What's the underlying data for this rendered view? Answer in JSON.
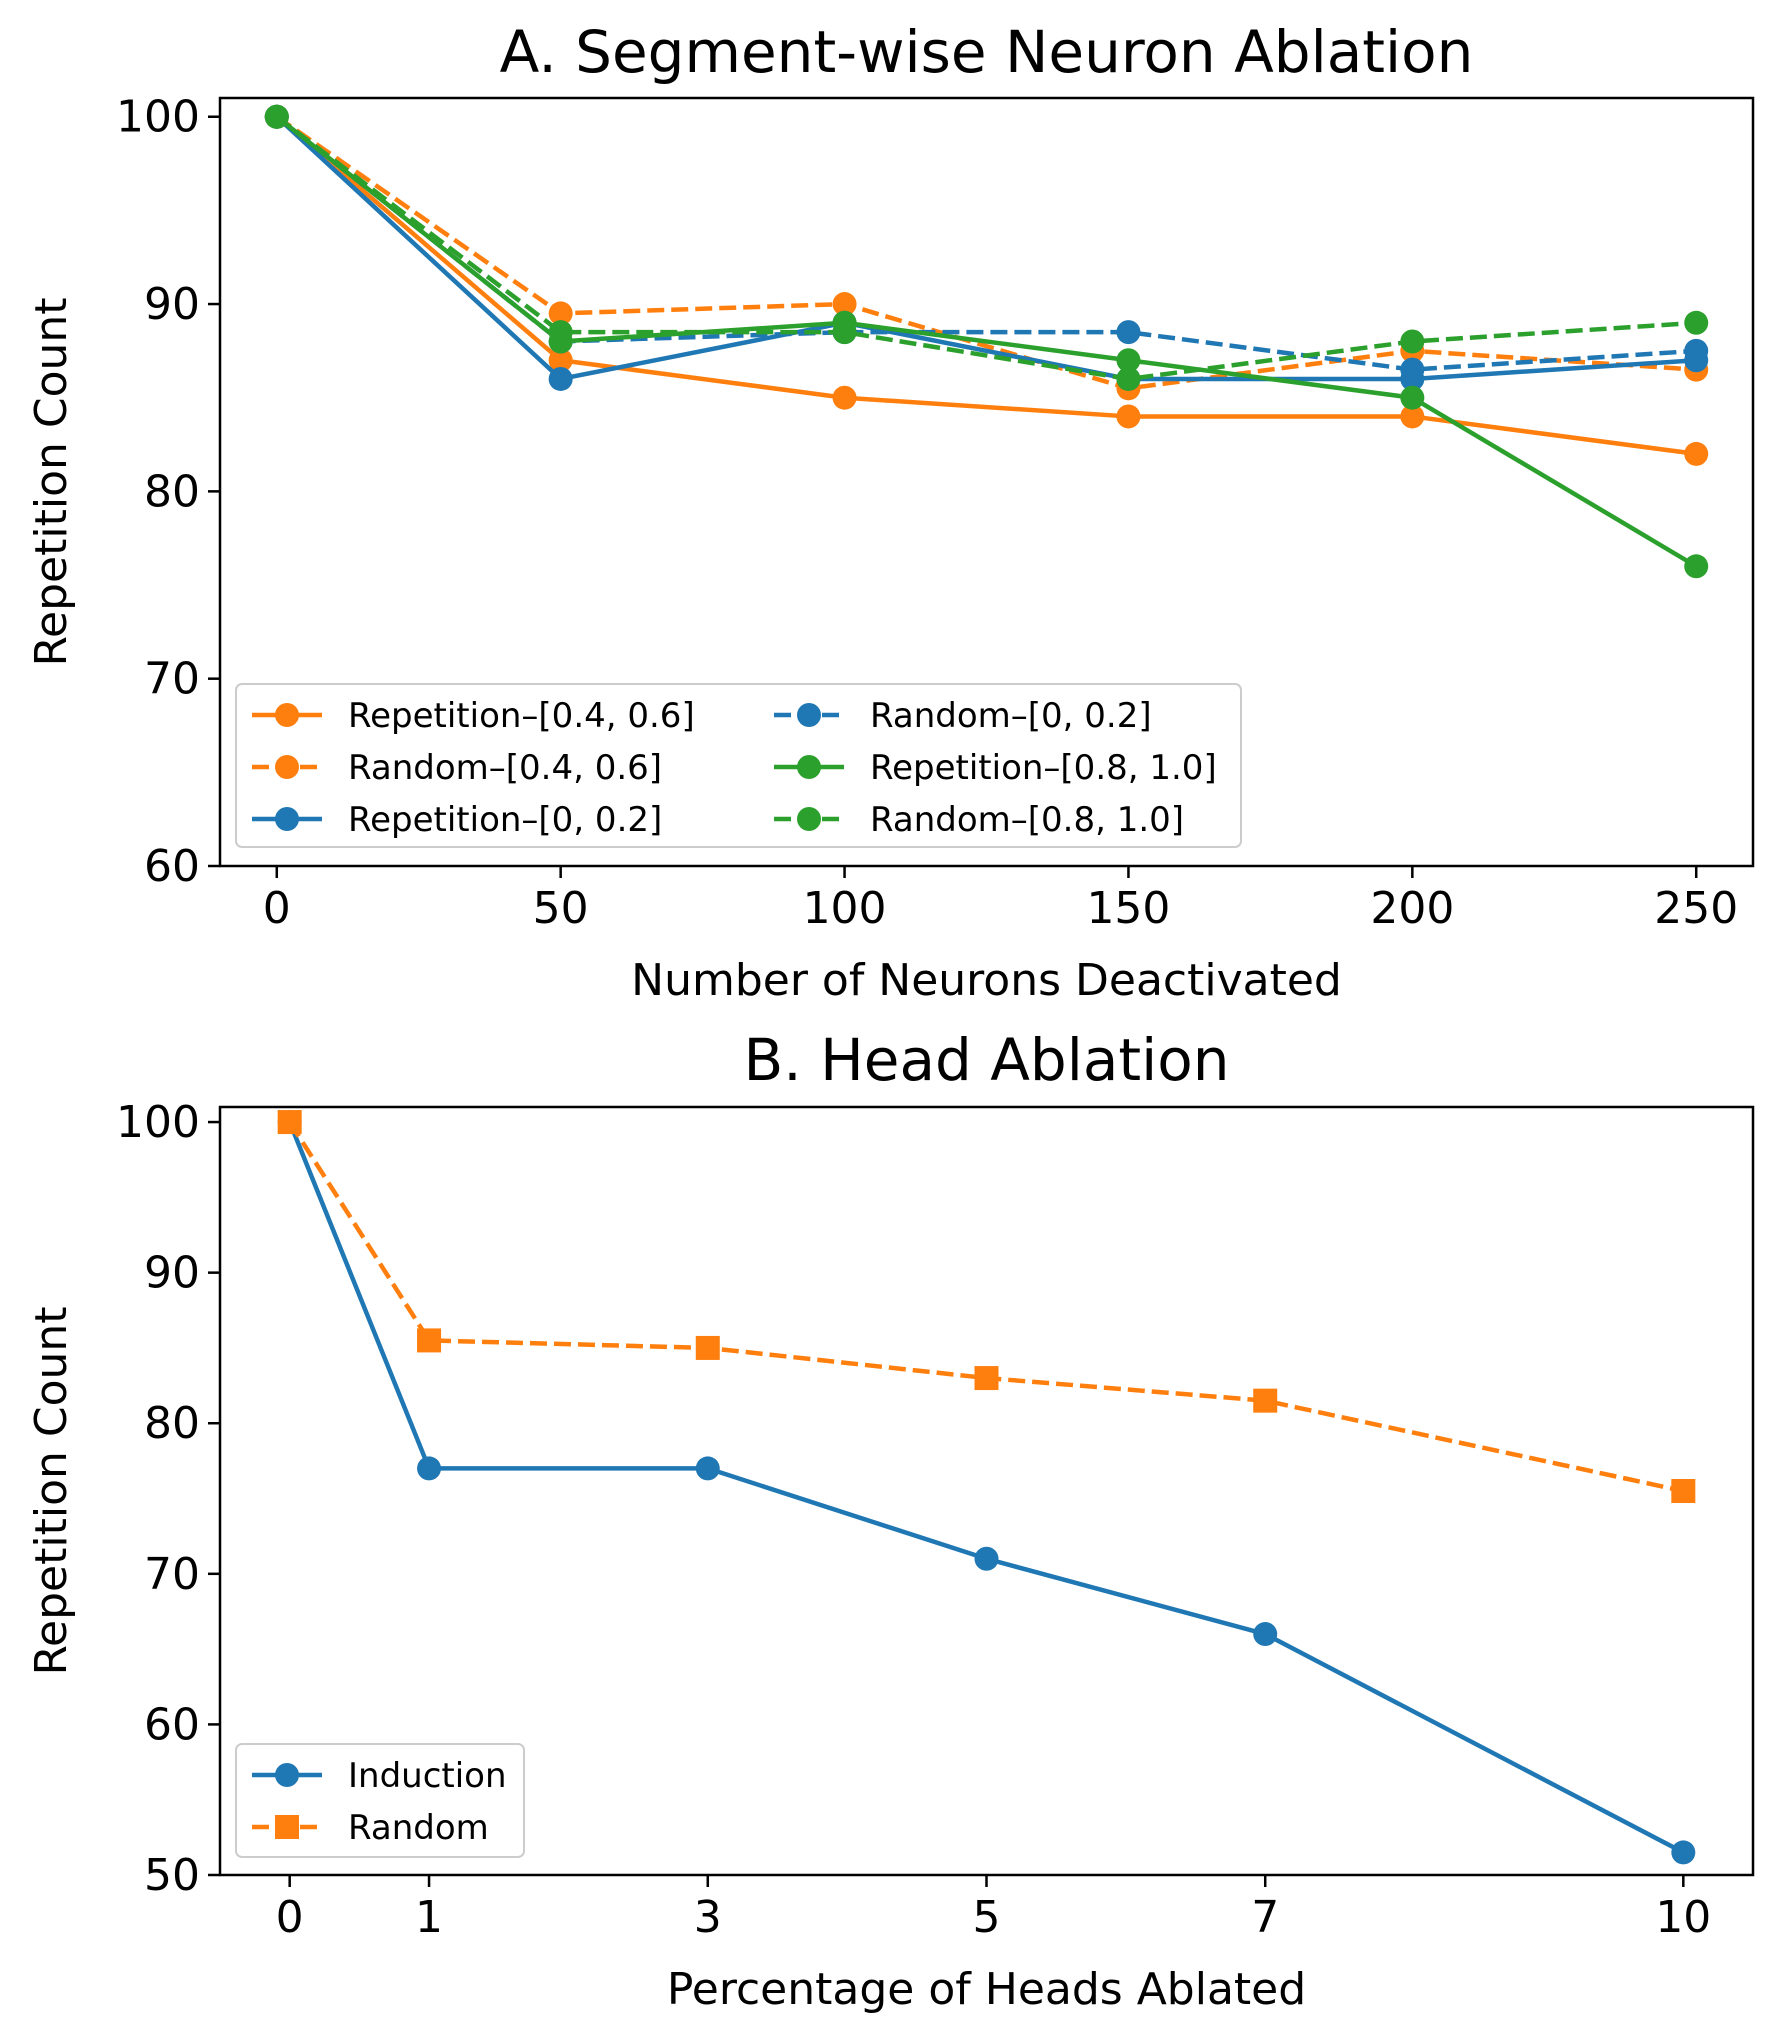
{
  "chart_data": [
    {
      "type": "line",
      "title": "A. Segment-wise Neuron Ablation",
      "xlabel": "Number of Neurons Deactivated",
      "ylabel": "Repetition Count",
      "xlim": [
        -10,
        260
      ],
      "ylim": [
        60,
        101
      ],
      "xticks": [
        0,
        50,
        100,
        150,
        200,
        250
      ],
      "yticks": [
        60,
        70,
        80,
        90,
        100
      ],
      "legend_location": "lower-left",
      "legend_columns": 2,
      "series": [
        {
          "name": "Repetition–[0.4, 0.6]",
          "color": "#ff7f0e",
          "dash": "solid",
          "marker": "circle",
          "x": [
            0,
            50,
            100,
            150,
            200,
            250
          ],
          "y": [
            100,
            87,
            85,
            84,
            84,
            82
          ]
        },
        {
          "name": "Random–[0.4, 0.6]",
          "color": "#ff7f0e",
          "dash": "dashed",
          "marker": "circle",
          "x": [
            0,
            50,
            100,
            150,
            200,
            250
          ],
          "y": [
            100,
            89.5,
            90,
            85.5,
            87.5,
            86.5
          ]
        },
        {
          "name": "Repetition–[0, 0.2]",
          "color": "#1f77b4",
          "dash": "solid",
          "marker": "circle",
          "x": [
            0,
            50,
            100,
            150,
            200,
            250
          ],
          "y": [
            100,
            86,
            89,
            86,
            86,
            87
          ]
        },
        {
          "name": "Random–[0, 0.2]",
          "color": "#1f77b4",
          "dash": "dashed",
          "marker": "circle",
          "x": [
            0,
            50,
            100,
            150,
            200,
            250
          ],
          "y": [
            100,
            88,
            88.5,
            88.5,
            86.5,
            87.5
          ]
        },
        {
          "name": "Repetition–[0.8, 1.0]",
          "color": "#2ca02c",
          "dash": "solid",
          "marker": "circle",
          "x": [
            0,
            50,
            100,
            150,
            200,
            250
          ],
          "y": [
            100,
            88,
            89,
            87,
            85,
            76
          ]
        },
        {
          "name": "Random–[0.8, 1.0]",
          "color": "#2ca02c",
          "dash": "dashed",
          "marker": "circle",
          "x": [
            0,
            50,
            100,
            150,
            200,
            250
          ],
          "y": [
            100,
            88.5,
            88.5,
            86,
            88,
            89
          ]
        }
      ]
    },
    {
      "type": "line",
      "title": "B. Head Ablation",
      "xlabel": "Percentage of Heads Ablated",
      "ylabel": "Repetition Count",
      "xlim": [
        -0.5,
        10.5
      ],
      "ylim": [
        50,
        101
      ],
      "xticks": [
        0,
        1,
        3,
        5,
        7,
        10
      ],
      "yticks": [
        50,
        60,
        70,
        80,
        90,
        100
      ],
      "legend_location": "lower-left",
      "legend_columns": 1,
      "series": [
        {
          "name": "Induction",
          "color": "#1f77b4",
          "dash": "solid",
          "marker": "circle",
          "x": [
            0,
            1,
            3,
            5,
            7,
            10
          ],
          "y": [
            100,
            77,
            77,
            71,
            66,
            51.5
          ]
        },
        {
          "name": "Random",
          "color": "#ff7f0e",
          "dash": "dashed",
          "marker": "square",
          "x": [
            0,
            1,
            3,
            5,
            7,
            10
          ],
          "y": [
            100,
            85.5,
            85,
            83,
            81.5,
            75.5
          ]
        }
      ]
    }
  ]
}
